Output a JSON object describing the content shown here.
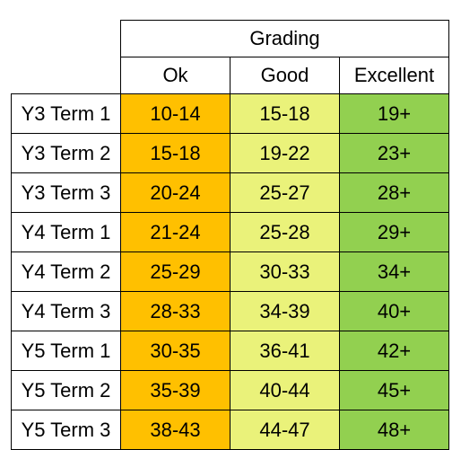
{
  "table": {
    "group_header": "Grading",
    "columns": [
      "Ok",
      "Good",
      "Excellent"
    ],
    "rows": [
      {
        "label": "Y3 Term 1",
        "ok": "10-14",
        "good": "15-18",
        "excellent": "19+"
      },
      {
        "label": "Y3 Term 2",
        "ok": "15-18",
        "good": "19-22",
        "excellent": "23+"
      },
      {
        "label": "Y3 Term 3",
        "ok": "20-24",
        "good": "25-27",
        "excellent": "28+"
      },
      {
        "label": "Y4 Term 1",
        "ok": "21-24",
        "good": "25-28",
        "excellent": "29+"
      },
      {
        "label": "Y4 Term 2",
        "ok": "25-29",
        "good": "30-33",
        "excellent": "34+"
      },
      {
        "label": "Y4 Term 3",
        "ok": "28-33",
        "good": "34-39",
        "excellent": "40+"
      },
      {
        "label": "Y5 Term 1",
        "ok": "30-35",
        "good": "36-41",
        "excellent": "42+"
      },
      {
        "label": "Y5 Term 2",
        "ok": "35-39",
        "good": "40-44",
        "excellent": "45+"
      },
      {
        "label": "Y5 Term 3",
        "ok": "38-43",
        "good": "44-47",
        "excellent": "48+"
      }
    ],
    "colors": {
      "ok": "#ffc000",
      "good": "#eaf27a",
      "excellent": "#92d050"
    }
  }
}
